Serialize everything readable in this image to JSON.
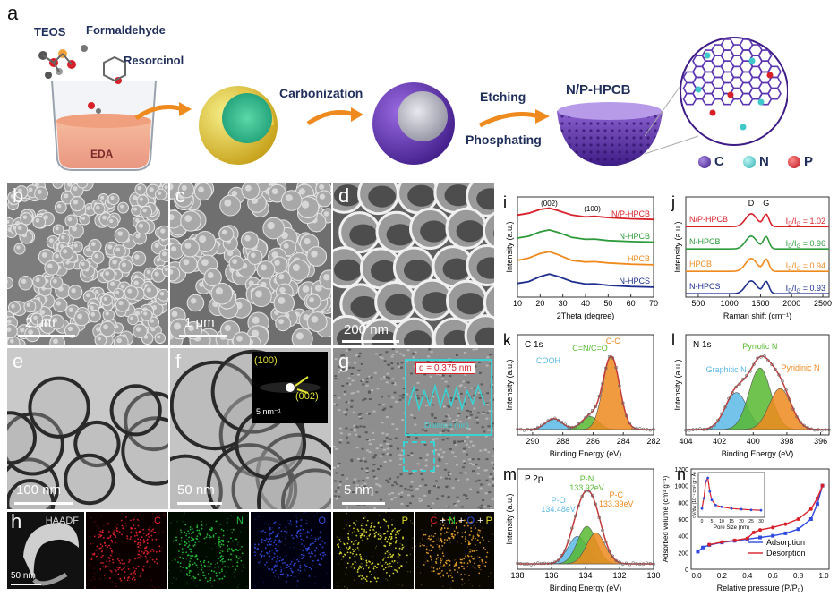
{
  "panel_a": {
    "label": "a",
    "reagents": [
      "TEOS",
      "Formaldehyde",
      "Resorcinol"
    ],
    "beaker_label": "EDA",
    "step1": "Carbonization",
    "step2a": "Etching",
    "step2b": "Phosphating",
    "product": "N/P-HPCB",
    "legend": [
      {
        "label": "C",
        "color": "#6a3fb5"
      },
      {
        "label": "N",
        "color": "#3fc7c9"
      },
      {
        "label": "P",
        "color": "#d8202a"
      }
    ]
  },
  "panels_bh": {
    "b": {
      "label": "b",
      "scale": "2 μm"
    },
    "c": {
      "label": "c",
      "scale": "1 μm"
    },
    "d": {
      "label": "d",
      "scale": "200 nm"
    },
    "e": {
      "label": "e",
      "scale": "100 nm"
    },
    "f": {
      "label": "f",
      "scale": "50 nm",
      "saed_100": "(100)",
      "saed_002": "(002)",
      "saed_scale": "5 nm⁻¹"
    },
    "g": {
      "label": "g",
      "scale": "5 nm",
      "d_spacing": "d = 0.375 nm",
      "inset_xlabel": "Distance (nm)"
    },
    "h": {
      "label": "h",
      "scale": "50 nm",
      "maps": [
        {
          "title": "HAADF",
          "color": "#dddddd"
        },
        {
          "title": "C",
          "color": "#e8262b"
        },
        {
          "title": "N",
          "color": "#27c63a"
        },
        {
          "title": "O",
          "color": "#2f4be0"
        },
        {
          "title": "P",
          "color": "#e3e335"
        }
      ],
      "merge": [
        {
          "t": "C",
          "color": "#e8262b"
        },
        {
          "t": " + ",
          "color": "#ffffff"
        },
        {
          "t": "N",
          "color": "#27c63a"
        },
        {
          "t": " + ",
          "color": "#ffffff"
        },
        {
          "t": "O",
          "color": "#2f4be0"
        },
        {
          "t": " + ",
          "color": "#ffffff"
        },
        {
          "t": "P",
          "color": "#e3e335"
        }
      ]
    }
  },
  "chart_data": [
    {
      "id": "i",
      "type": "line",
      "xlabel": "2Theta (degree)",
      "ylabel": "Intensity (a.u.)",
      "xlim": [
        10,
        70
      ],
      "xticks": [
        10,
        20,
        30,
        40,
        50,
        60,
        70
      ],
      "peak_labels": [
        "(002)",
        "(100)"
      ],
      "series": [
        {
          "name": "N/P-HPCB",
          "color": "#d8202a",
          "x": [
            10,
            15,
            20,
            24,
            28,
            34,
            40,
            44,
            50,
            60,
            70
          ],
          "y": [
            0.55,
            0.7,
            1.0,
            1.1,
            0.9,
            0.55,
            0.4,
            0.45,
            0.35,
            0.25,
            0.2
          ]
        },
        {
          "name": "N-HPCB",
          "color": "#2c9a3a",
          "x": [
            10,
            15,
            20,
            24,
            28,
            34,
            40,
            44,
            50,
            60,
            70
          ],
          "y": [
            0.5,
            0.65,
            1.0,
            1.15,
            0.95,
            0.55,
            0.4,
            0.42,
            0.3,
            0.22,
            0.18
          ]
        },
        {
          "name": "HPCB",
          "color": "#ef8a1f",
          "x": [
            10,
            15,
            20,
            24,
            28,
            34,
            40,
            44,
            50,
            60,
            70
          ],
          "y": [
            0.5,
            0.7,
            1.05,
            1.2,
            0.95,
            0.5,
            0.38,
            0.4,
            0.3,
            0.2,
            0.15
          ]
        },
        {
          "name": "N-HPCS",
          "color": "#1f2f8f",
          "x": [
            10,
            15,
            20,
            24,
            28,
            34,
            40,
            44,
            50,
            60,
            70
          ],
          "y": [
            0.45,
            0.6,
            1.0,
            1.2,
            1.0,
            0.6,
            0.4,
            0.42,
            0.3,
            0.2,
            0.15
          ]
        }
      ]
    },
    {
      "id": "j",
      "type": "line",
      "xlabel": "Raman shift (cm⁻¹)",
      "ylabel": "Intensity (a.u.)",
      "xlim": [
        300,
        2600
      ],
      "xticks": [
        500,
        1000,
        1500,
        2000,
        2500
      ],
      "band_labels": [
        "D",
        "G"
      ],
      "series": [
        {
          "name": "N/P-HPCB",
          "color": "#d8202a",
          "ratio": "1.02"
        },
        {
          "name": "N-HPCB",
          "color": "#2c9a3a",
          "ratio": "0.96"
        },
        {
          "name": "HPCB",
          "color": "#ef8a1f",
          "ratio": "0.94"
        },
        {
          "name": "N-HPCS",
          "color": "#1f2f8f",
          "ratio": "0.93"
        }
      ],
      "ratio_label": "I",
      "ratio_sub1": "D",
      "ratio_sub2": "G",
      "equals": " = "
    },
    {
      "id": "k",
      "type": "area",
      "title": "C 1s",
      "xlabel": "Binding Energy (eV)",
      "ylabel": "Intensity (a.u.)",
      "xlim": [
        291,
        282
      ],
      "xticks": [
        290,
        288,
        286,
        284,
        282
      ],
      "peaks": [
        {
          "name": "COOH",
          "center": 288.6,
          "height": 0.15,
          "color": "#5ab8e8"
        },
        {
          "name": "C=N/C=O",
          "center": 286.2,
          "height": 0.18,
          "color": "#57b92f"
        },
        {
          "name": "C-C",
          "center": 284.8,
          "height": 1.0,
          "color": "#ef8a1f"
        }
      ]
    },
    {
      "id": "l",
      "type": "area",
      "title": "N 1s",
      "xlabel": "Binding Energy (eV)",
      "ylabel": "Intensity (a.u.)",
      "xlim": [
        404,
        395.5
      ],
      "xticks": [
        404,
        402,
        400,
        398,
        396
      ],
      "peaks": [
        {
          "name": "Graphitic N",
          "center": 401.0,
          "height": 0.45,
          "color": "#5ab8e8"
        },
        {
          "name": "Pyrrolic N",
          "center": 399.6,
          "height": 0.75,
          "color": "#57b92f"
        },
        {
          "name": "Pyridinic N",
          "center": 398.4,
          "height": 0.5,
          "color": "#ef8a1f"
        }
      ]
    },
    {
      "id": "m",
      "type": "area",
      "title": "P 2p",
      "xlabel": "Binding Energy (eV)",
      "ylabel": "Intensity (a.u.)",
      "xlim": [
        138,
        130
      ],
      "xticks": [
        138,
        136,
        134,
        132,
        130
      ],
      "peaks": [
        {
          "name": "P-O",
          "value_label": "134.48eV",
          "center": 134.48,
          "height": 0.55,
          "color": "#5ab8e8"
        },
        {
          "name": "P-N",
          "value_label": "133.92eV",
          "center": 133.92,
          "height": 0.75,
          "color": "#57b92f"
        },
        {
          "name": "P-C",
          "value_label": "133.39eV",
          "center": 133.39,
          "height": 0.62,
          "color": "#ef8a1f"
        }
      ]
    },
    {
      "id": "n",
      "type": "line",
      "xlabel": "Relative pressure (P/P₀)",
      "ylabel": "Adsorbed volume (cm³ g⁻¹)",
      "xlim": [
        0,
        1.0
      ],
      "ylim": [
        0,
        1200
      ],
      "xticks": [
        0.0,
        0.2,
        0.4,
        0.6,
        0.8,
        1.0
      ],
      "yticks": [
        0,
        200,
        400,
        600,
        800,
        1000,
        1200
      ],
      "series": [
        {
          "name": "Adsorption",
          "color": "#2f4be0",
          "x": [
            0.01,
            0.05,
            0.1,
            0.2,
            0.3,
            0.4,
            0.5,
            0.6,
            0.7,
            0.8,
            0.9,
            0.95,
            0.99
          ],
          "y": [
            210,
            260,
            290,
            320,
            340,
            360,
            380,
            400,
            430,
            480,
            600,
            780,
            1000
          ]
        },
        {
          "name": "Desorption",
          "color": "#d8202a",
          "x": [
            0.99,
            0.95,
            0.9,
            0.8,
            0.7,
            0.6,
            0.5,
            0.45,
            0.4,
            0.3,
            0.2,
            0.1
          ],
          "y": [
            1000,
            850,
            720,
            600,
            540,
            500,
            470,
            440,
            370,
            345,
            325,
            295
          ]
        }
      ],
      "inset": {
        "xlabel": "Pore Size (nm)",
        "ylabel": "dV/dw (10⁻¹ cm³ g⁻¹ Å)",
        "xticks": [
          0,
          5,
          10,
          15,
          20,
          25,
          30
        ],
        "x": [
          0,
          1,
          2,
          3,
          4,
          5,
          7,
          10,
          15,
          20,
          25,
          30
        ],
        "y": [
          0.1,
          0.4,
          0.9,
          1.0,
          0.6,
          0.35,
          0.2,
          0.15,
          0.1,
          0.08,
          0.06,
          0.05
        ]
      }
    }
  ]
}
